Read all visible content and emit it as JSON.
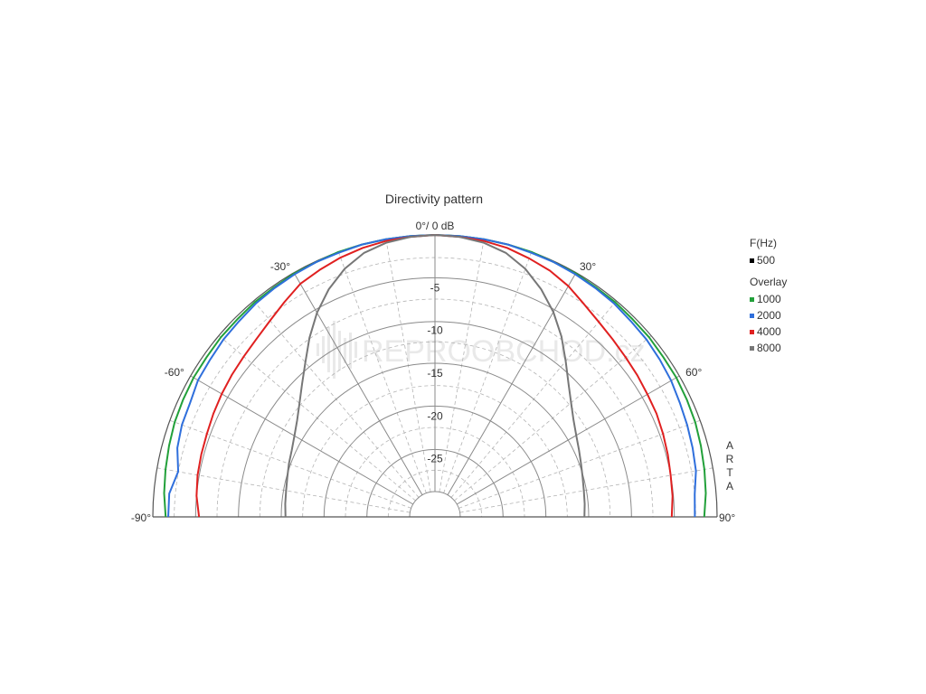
{
  "chart_data": {
    "type": "polar",
    "title": "Directivity pattern",
    "radial_axis": {
      "unit": "dB",
      "min": -30,
      "max": 0,
      "top_label": "0°/ 0 dB",
      "ticks": [
        -5,
        -10,
        -15,
        -20,
        -25
      ],
      "tick_labels": [
        "-5",
        "-10",
        "-15",
        "-20",
        "-25"
      ]
    },
    "angle_axis": {
      "range": [
        -90,
        90
      ],
      "labels": [
        {
          "angle": -90,
          "text": "-90°"
        },
        {
          "angle": -60,
          "text": "-60°"
        },
        {
          "angle": -30,
          "text": "-30°"
        },
        {
          "angle": 30,
          "text": "30°"
        },
        {
          "angle": 60,
          "text": "60°"
        },
        {
          "angle": 90,
          "text": "90°"
        }
      ]
    },
    "grid": true,
    "legend": {
      "placement": "right",
      "frequency_header": "F(Hz)",
      "frequency_item": {
        "label": "500",
        "color": "#000000"
      },
      "overlay_header": "Overlay",
      "overlay_items": [
        {
          "label": "1000",
          "color": "#22a03a"
        },
        {
          "label": "2000",
          "color": "#2f6fdc"
        },
        {
          "label": "4000",
          "color": "#e02020"
        },
        {
          "label": "8000",
          "color": "#777777"
        }
      ]
    },
    "side_label": [
      "A",
      "R",
      "T",
      "A"
    ],
    "watermark": "REPROOBCHOD.cz",
    "series": [
      {
        "name": "1000",
        "color": "#22a03a",
        "angles": [
          -90,
          -85,
          -80,
          -75,
          -70,
          -65,
          -60,
          -55,
          -50,
          -45,
          -40,
          -35,
          -30,
          -25,
          -20,
          -15,
          -10,
          -5,
          0,
          5,
          10,
          15,
          20,
          25,
          30,
          35,
          40,
          45,
          50,
          55,
          60,
          65,
          70,
          75,
          80,
          85,
          90
        ],
        "values": [
          -1.5,
          -1.2,
          -1.0,
          -0.8,
          -0.6,
          -0.5,
          -0.4,
          -0.4,
          -0.3,
          -0.3,
          -0.2,
          -0.2,
          -0.1,
          -0.1,
          0,
          0,
          0,
          0,
          0,
          0,
          0,
          0,
          0,
          -0.1,
          -0.1,
          -0.2,
          -0.2,
          -0.3,
          -0.3,
          -0.4,
          -0.4,
          -0.5,
          -0.6,
          -0.8,
          -1.0,
          -1.2,
          -1.5
        ]
      },
      {
        "name": "2000",
        "color": "#2f6fdc",
        "angles": [
          -90,
          -85,
          -80,
          -75,
          -70,
          -65,
          -60,
          -55,
          -50,
          -45,
          -40,
          -35,
          -30,
          -25,
          -20,
          -15,
          -10,
          -5,
          0,
          5,
          10,
          15,
          20,
          25,
          30,
          35,
          40,
          45,
          50,
          55,
          60,
          65,
          70,
          75,
          80,
          85,
          90
        ],
        "values": [
          -1.8,
          -1.8,
          -2.5,
          -1.8,
          -1.5,
          -1.4,
          -1.0,
          -0.9,
          -0.7,
          -0.6,
          -0.4,
          -0.3,
          -0.2,
          -0.1,
          -0.1,
          0,
          0,
          0,
          0,
          0,
          0,
          0,
          -0.1,
          -0.1,
          -0.2,
          -0.3,
          -0.4,
          -0.6,
          -0.7,
          -0.9,
          -1.1,
          -1.4,
          -1.6,
          -1.8,
          -2.0,
          -2.5,
          -2.6
        ]
      },
      {
        "name": "4000",
        "color": "#e02020",
        "angles": [
          -90,
          -85,
          -80,
          -75,
          -70,
          -65,
          -60,
          -55,
          -50,
          -45,
          -40,
          -35,
          -30,
          -25,
          -20,
          -15,
          -10,
          -5,
          0,
          5,
          10,
          15,
          20,
          25,
          30,
          35,
          40,
          45,
          50,
          55,
          60,
          65,
          70,
          75,
          80,
          85,
          90
        ],
        "values": [
          -5.4,
          -5.0,
          -4.8,
          -4.7,
          -4.6,
          -4.4,
          -4.2,
          -4.0,
          -3.8,
          -3.5,
          -3.0,
          -2.3,
          -1.5,
          -1.1,
          -0.7,
          -0.4,
          -0.2,
          -0.1,
          0,
          -0.1,
          -0.2,
          -0.4,
          -0.8,
          -1.2,
          -1.8,
          -2.6,
          -3.2,
          -3.6,
          -3.9,
          -4.1,
          -4.3,
          -4.4,
          -4.6,
          -4.8,
          -5.0,
          -5.1,
          -5.3
        ]
      },
      {
        "name": "8000",
        "color": "#777777",
        "angles": [
          -90,
          -85,
          -80,
          -75,
          -70,
          -65,
          -60,
          -55,
          -50,
          -45,
          -40,
          -35,
          -30,
          -25,
          -20,
          -15,
          -10,
          -5,
          0,
          5,
          10,
          15,
          20,
          25,
          30,
          35,
          40,
          45,
          50,
          55,
          60,
          65,
          70,
          75,
          80,
          85,
          90
        ],
        "values": [
          -15.5,
          -15.4,
          -15.3,
          -15.1,
          -14.8,
          -14.5,
          -14.0,
          -13.3,
          -12.3,
          -11.0,
          -9.4,
          -7.4,
          -5.4,
          -3.6,
          -2.1,
          -1.0,
          -0.4,
          -0.1,
          0,
          -0.1,
          -0.4,
          -1.0,
          -2.1,
          -3.6,
          -5.3,
          -7.2,
          -9.2,
          -10.9,
          -12.2,
          -13.2,
          -13.9,
          -14.4,
          -14.8,
          -15.1,
          -15.3,
          -15.4,
          -15.5
        ]
      }
    ]
  }
}
